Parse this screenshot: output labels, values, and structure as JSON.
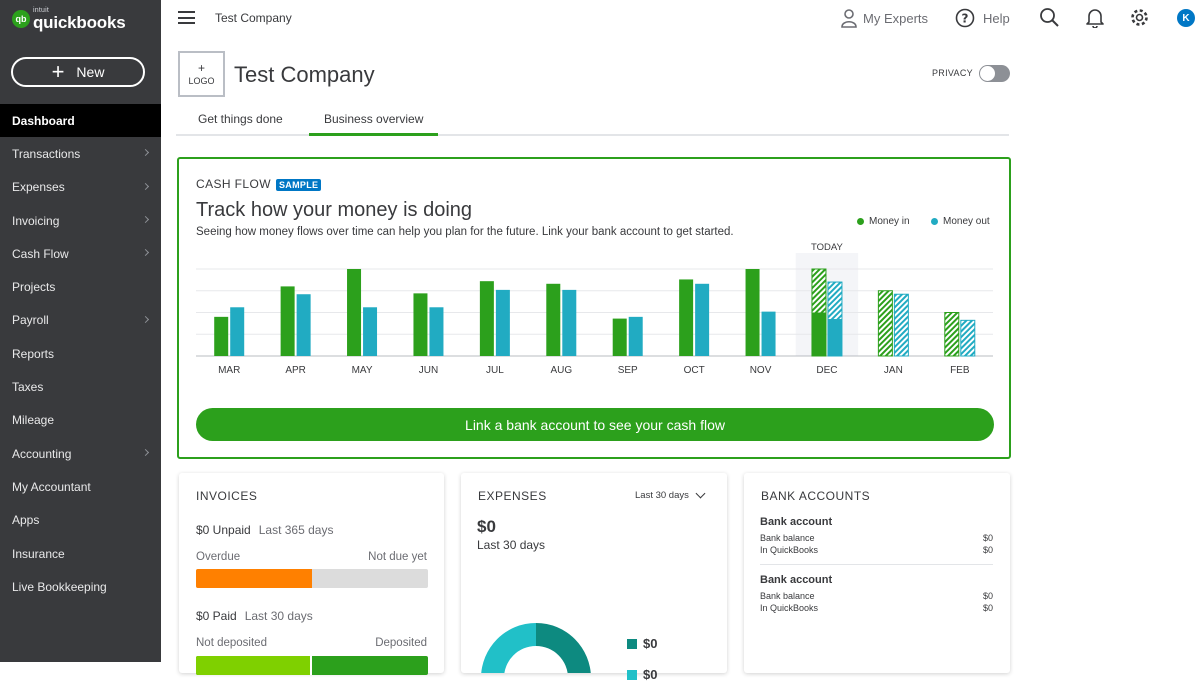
{
  "app": {
    "logo_brand": "quickbooks",
    "logo_company": "intuit",
    "logo_mark": "qb"
  },
  "sidebar": {
    "new_label": "New",
    "items": [
      {
        "label": "Dashboard",
        "active": true,
        "chevron": false
      },
      {
        "label": "Transactions",
        "chevron": true
      },
      {
        "label": "Expenses",
        "chevron": true
      },
      {
        "label": "Invoicing",
        "chevron": true
      },
      {
        "label": "Cash Flow",
        "chevron": true
      },
      {
        "label": "Projects",
        "chevron": false
      },
      {
        "label": "Payroll",
        "chevron": true
      },
      {
        "label": "Reports",
        "chevron": false
      },
      {
        "label": "Taxes",
        "chevron": false
      },
      {
        "label": "Mileage",
        "chevron": false
      },
      {
        "label": "Accounting",
        "chevron": true
      },
      {
        "label": "My Accountant",
        "chevron": false
      },
      {
        "label": "Apps",
        "chevron": false
      },
      {
        "label": "Insurance",
        "chevron": false
      },
      {
        "label": "Live Bookkeeping",
        "chevron": false
      }
    ]
  },
  "topbar": {
    "company": "Test Company",
    "my_experts": "My Experts",
    "help": "Help",
    "avatar_initial": "K"
  },
  "header": {
    "logo_plus": "+",
    "logo_label": "LOGO",
    "company_title": "Test Company",
    "privacy_label": "PRIVACY",
    "tabs": [
      {
        "label": "Get things done"
      },
      {
        "label": "Business overview",
        "active": true
      }
    ]
  },
  "cashflow": {
    "title": "CASH FLOW",
    "badge": "SAMPLE",
    "headline": "Track how your money is doing",
    "subtitle": "Seeing how money flows over time can help you plan for the future. Link your bank account to get started.",
    "legend_in": "Money in",
    "legend_out": "Money out",
    "today_label": "TODAY",
    "link_button": "Link a bank account to see your cash flow",
    "colors": {
      "money_in": "#2ca01c",
      "money_out": "#21abc2"
    }
  },
  "chart_data": {
    "type": "bar",
    "categories": [
      "MAR",
      "APR",
      "MAY",
      "JUN",
      "JUL",
      "AUG",
      "SEP",
      "OCT",
      "NOV",
      "DEC",
      "JAN",
      "FEB"
    ],
    "series": [
      {
        "name": "Money in",
        "values": [
          45,
          80,
          100,
          72,
          86,
          83,
          43,
          88,
          100,
          100,
          75,
          50
        ]
      },
      {
        "name": "Money out",
        "values": [
          56,
          71,
          56,
          56,
          76,
          76,
          45,
          83,
          51,
          85,
          71,
          41
        ]
      }
    ],
    "forecast_from_index": 9,
    "today_category": "DEC",
    "ylim": [
      0,
      100
    ],
    "grid": true
  },
  "invoices": {
    "title": "INVOICES",
    "unpaid_amount": "$0 Unpaid",
    "unpaid_period": "Last 365 days",
    "overdue_label": "Overdue",
    "not_due_label": "Not due yet",
    "overdue_fraction": 0.5,
    "paid_amount": "$0 Paid",
    "paid_period": "Last 30 days",
    "not_deposited_label": "Not deposited",
    "deposited_label": "Deposited",
    "not_deposited_fraction": 0.5,
    "colors": {
      "overdue": "#ff8000",
      "not_due": "#dcdcdc",
      "not_deposited": "#7fd000",
      "deposited": "#2ca01c"
    }
  },
  "expenses": {
    "title": "EXPENSES",
    "period_select": "Last 30 days",
    "amount": "$0",
    "period": "Last 30 days",
    "legend": [
      {
        "value": "$0",
        "color": "#0d8a80"
      },
      {
        "value": "$0",
        "color": "#21c0c8"
      }
    ]
  },
  "bank_accounts": {
    "title": "BANK ACCOUNTS",
    "accounts": [
      {
        "name": "Bank account",
        "balance_label": "Bank balance",
        "balance": "$0",
        "qb_label": "In QuickBooks",
        "qb_balance": "$0"
      },
      {
        "name": "Bank account",
        "balance_label": "Bank balance",
        "balance": "$0",
        "qb_label": "In QuickBooks",
        "qb_balance": "$0"
      }
    ]
  }
}
